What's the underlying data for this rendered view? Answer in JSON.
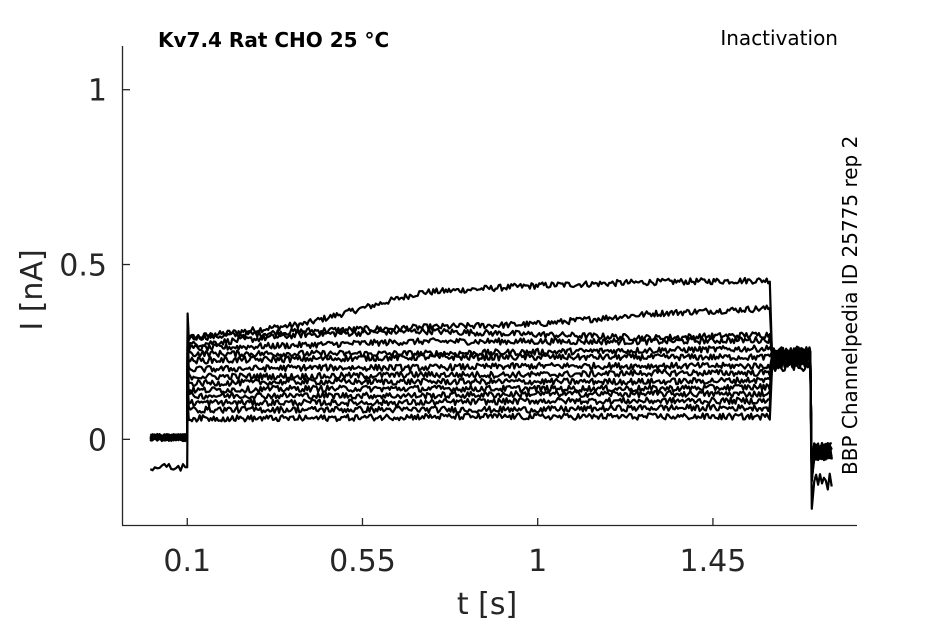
{
  "chart_data": {
    "type": "line",
    "title": "Kv7.4  Rat  CHO  25 °C",
    "protocol": "Inactivation",
    "side_note": "BBP Channelpedia ID 25775 rep 2",
    "xlabel": "t [s]",
    "ylabel": "I [nA]",
    "xlim": [
      -0.065,
      1.82
    ],
    "ylim": [
      -0.245,
      1.125
    ],
    "x_ticks": [
      {
        "value": 0.1,
        "label": "0.1"
      },
      {
        "value": 0.55,
        "label": "0.55"
      },
      {
        "value": 1,
        "label": "1"
      },
      {
        "value": 1.45,
        "label": "1.45"
      }
    ],
    "y_ticks": [
      {
        "value": 0,
        "label": "0"
      },
      {
        "value": 0.5,
        "label": "0.5"
      },
      {
        "value": 1,
        "label": "1"
      }
    ],
    "grid": false,
    "step_start": 0.1,
    "step_end": 1.6,
    "tail_end": 1.7,
    "holding_current": [
      0.005,
      0.005,
      0.005,
      0.005,
      0.005,
      0.005,
      0.005,
      0.005,
      0.005,
      0.005,
      0.005,
      0.005,
      0.005,
      -0.08
    ],
    "series": [
      {
        "step": [
          0.29,
          0.33,
          0.42,
          0.44,
          0.45,
          0.455
        ],
        "tail": 0.23
      },
      {
        "step": [
          0.29,
          0.31,
          0.32,
          0.33,
          0.36,
          0.375
        ],
        "tail": 0.24
      },
      {
        "step": [
          0.27,
          0.3,
          0.31,
          0.3,
          0.29,
          0.3
        ],
        "tail": 0.24
      },
      {
        "step": [
          0.26,
          0.27,
          0.28,
          0.28,
          0.28,
          0.285
        ],
        "tail": 0.25
      },
      {
        "step": [
          0.245,
          0.245,
          0.245,
          0.25,
          0.255,
          0.26
        ],
        "tail": 0.25
      },
      {
        "step": [
          0.225,
          0.23,
          0.235,
          0.235,
          0.235,
          0.235
        ],
        "tail": 0.25
      },
      {
        "step": [
          0.2,
          0.205,
          0.205,
          0.21,
          0.21,
          0.21
        ],
        "tail": 0.24
      },
      {
        "step": [
          0.18,
          0.18,
          0.185,
          0.185,
          0.19,
          0.19
        ],
        "tail": 0.24
      },
      {
        "step": [
          0.16,
          0.165,
          0.165,
          0.165,
          0.165,
          0.17
        ],
        "tail": 0.23
      },
      {
        "step": [
          0.14,
          0.145,
          0.145,
          0.145,
          0.145,
          0.15
        ],
        "tail": 0.23
      },
      {
        "step": [
          0.125,
          0.125,
          0.125,
          0.13,
          0.13,
          0.13
        ],
        "tail": 0.22
      },
      {
        "step": [
          0.105,
          0.105,
          0.105,
          0.11,
          0.11,
          0.11
        ],
        "tail": 0.22
      },
      {
        "step": [
          0.085,
          0.085,
          0.085,
          0.085,
          0.09,
          0.09
        ],
        "tail": 0.22
      },
      {
        "step": [
          0.06,
          0.06,
          0.065,
          0.065,
          0.065,
          0.065
        ],
        "tail": 0.21
      }
    ]
  }
}
